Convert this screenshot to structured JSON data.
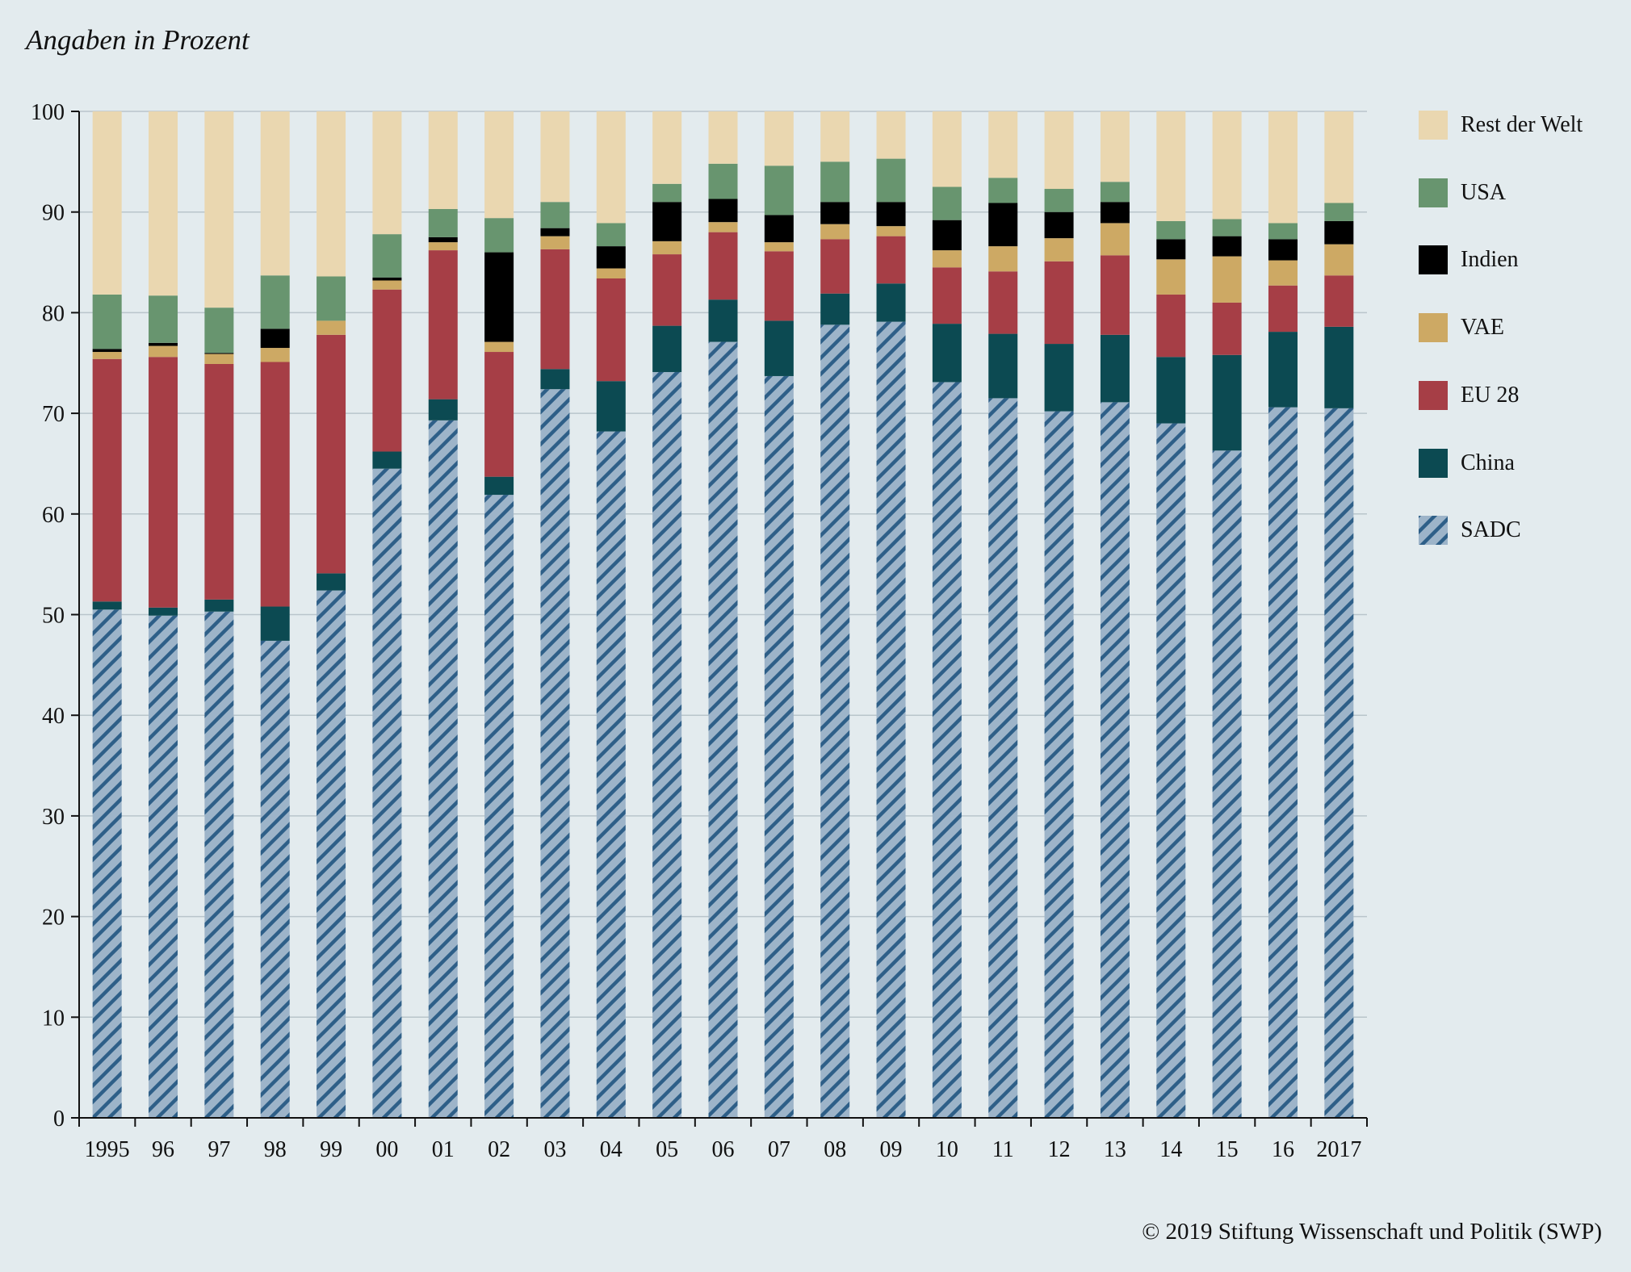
{
  "subtitle": "Angaben in Prozent",
  "copyright": "© 2019 Stiftung Wissenschaft und Politik (SWP)",
  "colors": {
    "background": "#e3ebee",
    "SADC": "#9db4c9",
    "SADC_hatch": "#2e5f88",
    "China": "#0c4a52",
    "EU 28": "#a63e46",
    "VAE": "#cda964",
    "Indien": "#000000",
    "USA": "#68956f",
    "Rest der Welt": "#ead7b0",
    "grid": "#b9c5cb",
    "axis": "#111111"
  },
  "legend": [
    {
      "name": "Rest der Welt",
      "icon": "solid-swatch"
    },
    {
      "name": "USA",
      "icon": "solid-swatch"
    },
    {
      "name": "Indien",
      "icon": "solid-swatch"
    },
    {
      "name": "VAE",
      "icon": "solid-swatch"
    },
    {
      "name": "EU 28",
      "icon": "solid-swatch"
    },
    {
      "name": "China",
      "icon": "solid-swatch"
    },
    {
      "name": "SADC",
      "icon": "hatched-swatch"
    }
  ],
  "chart_data": {
    "type": "bar",
    "stacked": true,
    "ylim": [
      0,
      100
    ],
    "yticks": [
      0,
      10,
      20,
      30,
      40,
      50,
      60,
      70,
      80,
      90,
      100
    ],
    "grid": true,
    "legend_position": "right",
    "categories": [
      "1995",
      "96",
      "97",
      "98",
      "99",
      "00",
      "01",
      "02",
      "03",
      "04",
      "05",
      "06",
      "07",
      "08",
      "09",
      "10",
      "11",
      "12",
      "13",
      "14",
      "15",
      "16",
      "2017"
    ],
    "series": [
      {
        "name": "SADC",
        "values": [
          50.5,
          49.9,
          50.3,
          47.4,
          52.4,
          64.5,
          69.3,
          61.9,
          72.4,
          68.2,
          74.1,
          77.1,
          73.7,
          78.8,
          79.1,
          73.1,
          71.5,
          70.2,
          71.1,
          69.0,
          66.3,
          70.6,
          70.5
        ]
      },
      {
        "name": "China",
        "values": [
          0.8,
          0.8,
          1.2,
          3.4,
          1.7,
          1.7,
          2.1,
          1.8,
          2.0,
          5.0,
          4.6,
          4.2,
          5.5,
          3.1,
          3.8,
          5.8,
          6.4,
          6.7,
          6.7,
          6.6,
          9.5,
          7.5,
          8.1
        ]
      },
      {
        "name": "EU 28",
        "values": [
          24.1,
          24.9,
          23.4,
          24.3,
          23.7,
          16.1,
          14.8,
          12.4,
          11.9,
          10.2,
          7.1,
          6.7,
          6.9,
          5.4,
          4.7,
          5.6,
          6.2,
          8.2,
          7.9,
          6.2,
          5.2,
          4.6,
          5.1
        ]
      },
      {
        "name": "VAE",
        "values": [
          0.7,
          1.1,
          1.0,
          1.4,
          1.4,
          0.9,
          0.8,
          1.0,
          1.3,
          1.0,
          1.3,
          1.0,
          0.9,
          1.5,
          1.0,
          1.7,
          2.5,
          2.3,
          3.2,
          3.5,
          4.6,
          2.5,
          3.1
        ]
      },
      {
        "name": "Indien",
        "values": [
          0.3,
          0.3,
          0.1,
          1.9,
          0.0,
          0.3,
          0.5,
          8.9,
          0.8,
          2.2,
          3.9,
          2.3,
          2.7,
          2.2,
          2.4,
          3.0,
          4.3,
          2.6,
          2.1,
          2.0,
          2.0,
          2.1,
          2.3
        ]
      },
      {
        "name": "USA",
        "values": [
          5.4,
          4.7,
          4.5,
          5.3,
          4.4,
          4.3,
          2.8,
          3.4,
          2.6,
          2.3,
          1.8,
          3.5,
          4.9,
          4.0,
          4.3,
          3.3,
          2.5,
          2.3,
          2.0,
          1.8,
          1.7,
          1.6,
          1.8
        ]
      },
      {
        "name": "Rest der Welt",
        "values": [
          18.2,
          18.3,
          19.5,
          16.3,
          16.4,
          12.2,
          9.7,
          10.6,
          9.0,
          11.1,
          7.2,
          5.2,
          5.4,
          5.0,
          4.7,
          7.5,
          6.6,
          7.7,
          7.0,
          10.9,
          10.7,
          11.1,
          9.1
        ]
      }
    ]
  }
}
